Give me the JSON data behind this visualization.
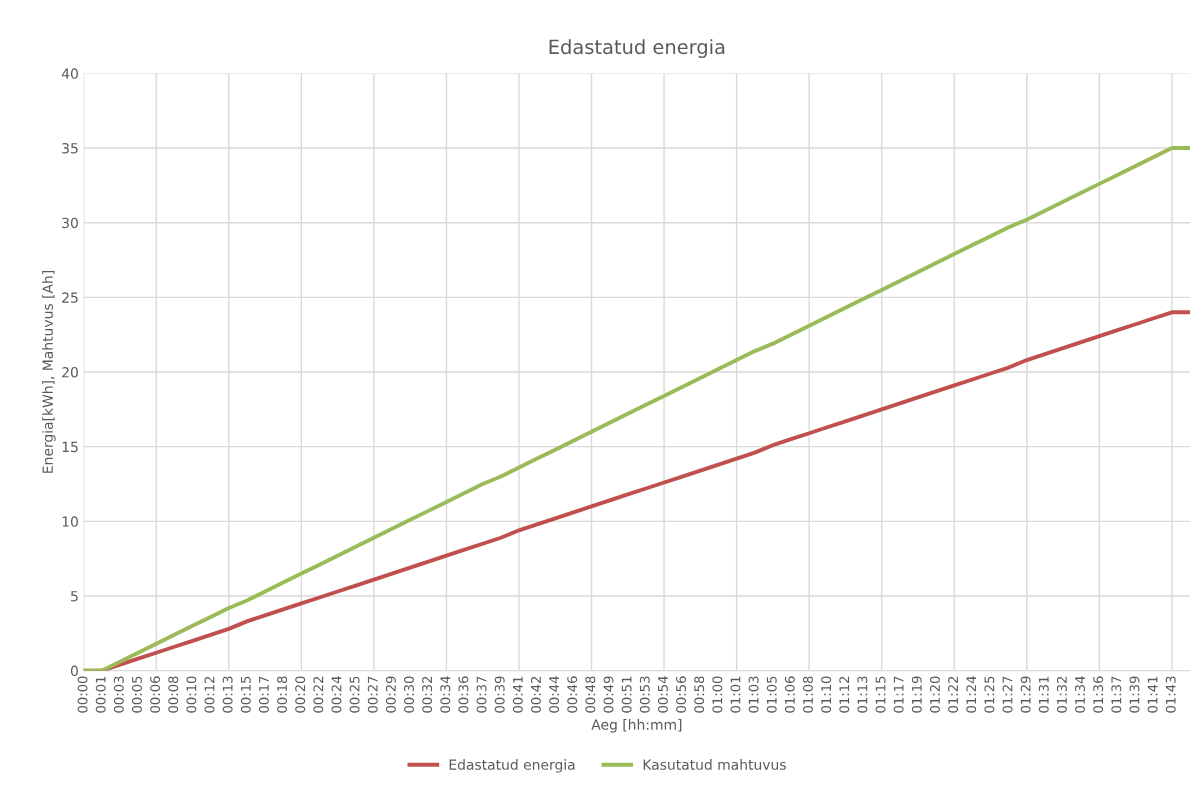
{
  "chart_data": {
    "type": "line",
    "title": "Edastatud energia",
    "xlabel": "Aeg [hh:mm]",
    "ylabel": "Energia[kWh], Mahtuvus [Ah]",
    "categories": [
      "00:00",
      "00:01",
      "00:03",
      "00:05",
      "00:06",
      "00:08",
      "00:10",
      "00:12",
      "00:13",
      "00:15",
      "00:17",
      "00:18",
      "00:20",
      "00:22",
      "00:24",
      "00:25",
      "00:27",
      "00:29",
      "00:30",
      "00:32",
      "00:34",
      "00:36",
      "00:37",
      "00:39",
      "00:41",
      "00:42",
      "00:44",
      "00:46",
      "00:48",
      "00:49",
      "00:51",
      "00:53",
      "00:54",
      "00:56",
      "00:58",
      "01:00",
      "01:01",
      "01:03",
      "01:05",
      "01:06",
      "01:08",
      "01:10",
      "01:12",
      "01:13",
      "01:15",
      "01:17",
      "01:19",
      "01:20",
      "01:22",
      "01:24",
      "01:25",
      "01:27",
      "01:29",
      "01:31",
      "01:32",
      "01:34",
      "01:36",
      "01:37",
      "01:39",
      "01:41",
      "01:43",
      null
    ],
    "series": [
      {
        "name": "Edastatud energia",
        "color": "#c0504d",
        "values": [
          0,
          0,
          0.4,
          0.8,
          1.2,
          1.6,
          2.0,
          2.4,
          2.8,
          3.3,
          3.7,
          4.1,
          4.5,
          4.9,
          5.3,
          5.7,
          6.1,
          6.5,
          6.9,
          7.3,
          7.7,
          8.1,
          8.5,
          8.9,
          9.4,
          9.8,
          10.2,
          10.6,
          11.0,
          11.4,
          11.8,
          12.2,
          12.6,
          13.0,
          13.4,
          13.8,
          14.2,
          14.6,
          15.1,
          15.5,
          15.9,
          16.3,
          16.7,
          17.1,
          17.5,
          17.9,
          18.3,
          18.7,
          19.1,
          19.5,
          19.9,
          20.3,
          20.8,
          21.2,
          21.6,
          22.0,
          22.4,
          22.8,
          23.2,
          23.6,
          24.0,
          24.0
        ]
      },
      {
        "name": "Kasutatud mahtuvus",
        "color": "#9bbb59",
        "values": [
          0,
          0,
          0.6,
          1.2,
          1.8,
          2.4,
          3.0,
          3.6,
          4.2,
          4.7,
          5.3,
          5.9,
          6.5,
          7.1,
          7.7,
          8.3,
          8.9,
          9.5,
          10.1,
          10.7,
          11.3,
          11.9,
          12.5,
          13.0,
          13.6,
          14.2,
          14.8,
          15.4,
          16.0,
          16.6,
          17.2,
          17.8,
          18.4,
          19.0,
          19.6,
          20.2,
          20.8,
          21.4,
          21.9,
          22.5,
          23.1,
          23.7,
          24.3,
          24.9,
          25.5,
          26.1,
          26.7,
          27.3,
          27.9,
          28.5,
          29.1,
          29.7,
          30.2,
          30.8,
          31.4,
          32.0,
          32.6,
          33.2,
          33.8,
          34.4,
          35.0,
          35.0
        ]
      }
    ],
    "ylim": [
      0,
      40
    ],
    "yticks": [
      0,
      5,
      10,
      15,
      20,
      25,
      30,
      35,
      40
    ],
    "grid": true,
    "legend": "bottom",
    "marker": "none",
    "line_style": "solid"
  }
}
